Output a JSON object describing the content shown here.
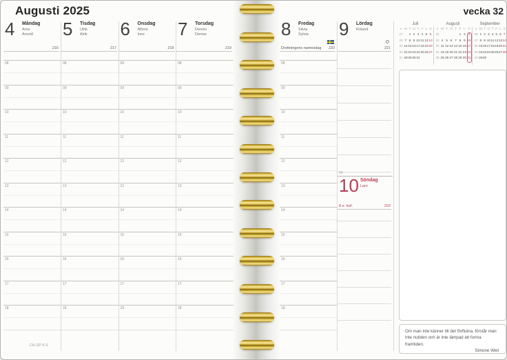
{
  "header": {
    "month_title": "Augusti 2025",
    "week_label": "vecka 32"
  },
  "days": [
    {
      "num": "4",
      "name": "Måndag",
      "namedays": [
        "Arne",
        "Arnold"
      ],
      "day_of_year": "216"
    },
    {
      "num": "5",
      "name": "Tisdag",
      "namedays": [
        "Ulrik",
        "Alrik"
      ],
      "day_of_year": "217"
    },
    {
      "num": "6",
      "name": "Onsdag",
      "namedays": [
        "Alfons",
        "Inez"
      ],
      "day_of_year": "218"
    },
    {
      "num": "7",
      "name": "Torsdag",
      "namedays": [
        "Dennis",
        "Denise"
      ],
      "day_of_year": "219"
    },
    {
      "num": "8",
      "name": "Fredag",
      "namedays": [
        "Silvia",
        "Sylvia"
      ],
      "day_of_year": "220",
      "note": "Drottningens namnsdag",
      "icon": "swedish-flag"
    },
    {
      "num": "9",
      "name": "Lördag",
      "namedays": [
        "Roland"
      ],
      "day_of_year": "221",
      "icon": "full-moon"
    },
    {
      "num": "10",
      "name": "Söndag",
      "namedays": [
        "Lars"
      ],
      "day_of_year": "222",
      "note": "8 e. tref.",
      "red": true
    }
  ],
  "hours": [
    "08",
    "09",
    "10",
    "11",
    "12",
    "13",
    "14",
    "15",
    "16",
    "17",
    "18"
  ],
  "saturday_hour_label": "14",
  "week_col_header": "v",
  "mini_dow": [
    "M",
    "T",
    "O",
    "T",
    "F",
    "L",
    "S"
  ],
  "mini_calendars": [
    {
      "title": "Juli",
      "weeks": [
        {
          "v": "27",
          "days": [
            "",
            "1",
            "2",
            "3",
            "4",
            "5",
            "6"
          ]
        },
        {
          "v": "28",
          "days": [
            "7",
            "8",
            "9",
            "10",
            "11",
            "12",
            "13"
          ]
        },
        {
          "v": "29",
          "days": [
            "14",
            "15",
            "16",
            "17",
            "18",
            "19",
            "20"
          ]
        },
        {
          "v": "30",
          "days": [
            "21",
            "22",
            "23",
            "24",
            "25",
            "26",
            "27"
          ]
        },
        {
          "v": "31",
          "days": [
            "28",
            "29",
            "30",
            "31",
            "",
            "",
            ""
          ]
        }
      ]
    },
    {
      "title": "Augusti",
      "highlight_sunday_column": true,
      "weeks": [
        {
          "v": "31",
          "days": [
            "",
            "",
            "",
            "",
            "1",
            "2",
            "3"
          ]
        },
        {
          "v": "32",
          "days": [
            "4",
            "5",
            "6",
            "7",
            "8",
            "9",
            "10"
          ]
        },
        {
          "v": "33",
          "days": [
            "11",
            "12",
            "13",
            "14",
            "15",
            "16",
            "17"
          ]
        },
        {
          "v": "34",
          "days": [
            "18",
            "19",
            "20",
            "21",
            "22",
            "23",
            "24"
          ]
        },
        {
          "v": "35",
          "days": [
            "25",
            "26",
            "27",
            "28",
            "29",
            "30",
            "31"
          ]
        }
      ]
    },
    {
      "title": "September",
      "weeks": [
        {
          "v": "36",
          "days": [
            "1",
            "2",
            "3",
            "4",
            "5",
            "6",
            "7"
          ]
        },
        {
          "v": "37",
          "days": [
            "8",
            "9",
            "10",
            "11",
            "12",
            "13",
            "14"
          ]
        },
        {
          "v": "38",
          "days": [
            "15",
            "16",
            "17",
            "18",
            "19",
            "20",
            "21"
          ]
        },
        {
          "v": "39",
          "days": [
            "22",
            "23",
            "24",
            "25",
            "26",
            "27",
            "28"
          ]
        },
        {
          "v": "40",
          "days": [
            "29",
            "30",
            "",
            "",
            "",
            "",
            ""
          ]
        }
      ]
    }
  ],
  "quote": {
    "text": "Om man inte känner till det förflutna, förstår man inte nutiden och är inte lämpad att forma framtiden.",
    "attribution": "Simone Weil"
  },
  "footer_code": "CA-GP-6-S",
  "colors": {
    "sunday_red": "#b63d55",
    "spiral_gold": "#cfa62e",
    "flag_blue": "#2d5da8",
    "flag_yellow": "#fecc02"
  }
}
